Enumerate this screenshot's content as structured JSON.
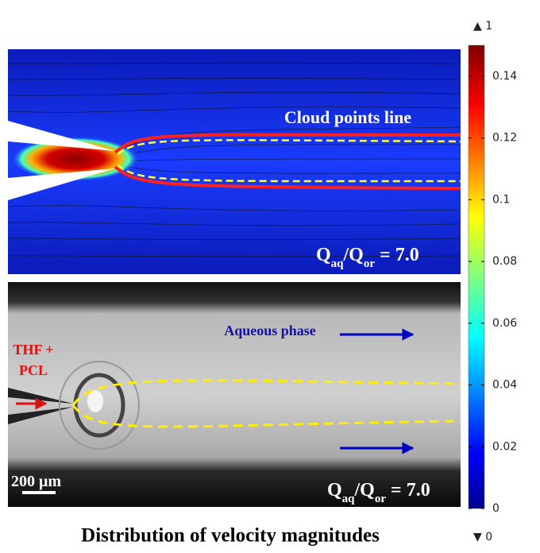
{
  "title": "Distribution of velocity magnitudes",
  "colorbar": {
    "max_label": "▲ 1",
    "min_label": "▼ 0",
    "ylim": [
      0,
      0.15
    ],
    "yticks": [
      0,
      0.02,
      0.04,
      0.06,
      0.08,
      0.1,
      0.12,
      0.14
    ]
  },
  "top_panel": {
    "annotation": "Cloud points line",
    "ratio": [
      "Q",
      "aq",
      "/Q",
      "or",
      " = 7.0"
    ]
  },
  "bottom_panel": {
    "phase_label": "Aqueous phase",
    "inlet_label": [
      "THF +",
      "PCL"
    ],
    "scale_bar": "200 μm",
    "ratio": [
      "Q",
      "aq",
      "/Q",
      "or",
      " = 7.0"
    ]
  }
}
